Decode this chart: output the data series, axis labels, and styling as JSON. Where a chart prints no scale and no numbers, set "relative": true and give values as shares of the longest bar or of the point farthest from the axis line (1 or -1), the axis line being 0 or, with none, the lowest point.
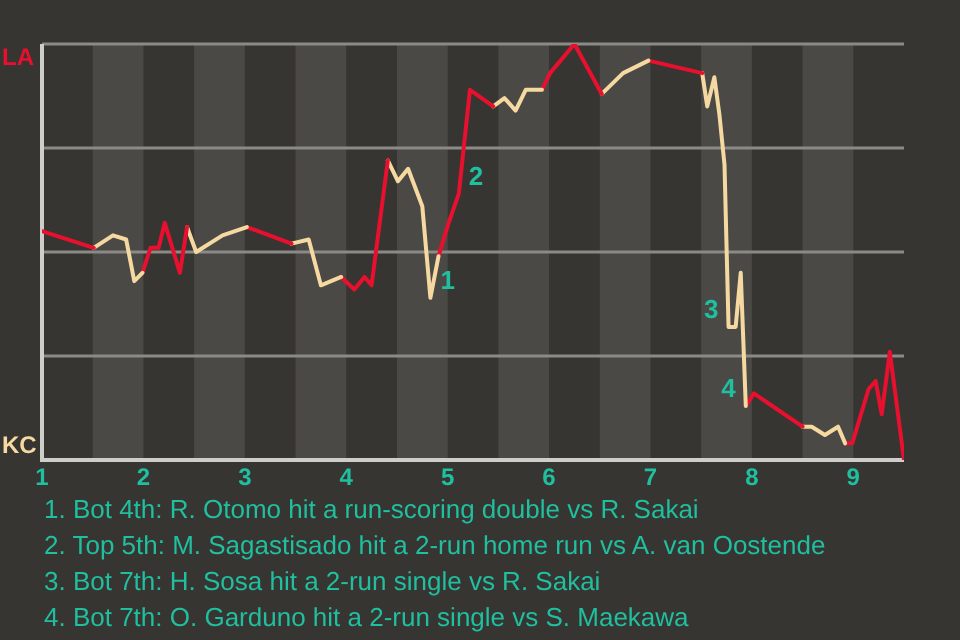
{
  "chart_data": {
    "type": "line",
    "relative": true,
    "xlim": [
      1,
      9.5
    ],
    "xticks": [
      1,
      2,
      3,
      4,
      5,
      6,
      7,
      8,
      9
    ],
    "grid": "y",
    "legend": false,
    "marker": "none",
    "line_style": "solid",
    "series": [
      {
        "color": "#e8102e",
        "x": [
          1,
          1.51
        ],
        "values": [
          0.55,
          0.51
        ]
      },
      {
        "color": "#f5d9a0",
        "x": [
          1.51,
          1.7,
          1.83,
          1.91,
          1.99
        ],
        "values": [
          0.51,
          0.54,
          0.53,
          0.43,
          0.45
        ]
      },
      {
        "color": "#e8102e",
        "x": [
          1.99,
          2.07,
          2.15,
          2.21,
          2.36,
          2.43
        ],
        "values": [
          0.45,
          0.51,
          0.51,
          0.57,
          0.45,
          0.56
        ]
      },
      {
        "color": "#f5d9a0",
        "x": [
          2.43,
          2.52,
          2.78,
          3.02
        ],
        "values": [
          0.56,
          0.5,
          0.54,
          0.56
        ]
      },
      {
        "color": "#e8102e",
        "x": [
          3.02,
          3.46
        ],
        "values": [
          0.56,
          0.52
        ]
      },
      {
        "color": "#f5d9a0",
        "x": [
          3.46,
          3.63,
          3.75,
          3.95
        ],
        "values": [
          0.52,
          0.53,
          0.42,
          0.44
        ]
      },
      {
        "color": "#e8102e",
        "x": [
          3.95,
          4.08,
          4.18,
          4.25,
          4.41
        ],
        "values": [
          0.44,
          0.41,
          0.44,
          0.42,
          0.72
        ]
      },
      {
        "color": "#f5d9a0",
        "x": [
          4.41,
          4.51,
          4.61,
          4.75,
          4.83,
          4.91
        ],
        "values": [
          0.72,
          0.67,
          0.7,
          0.61,
          0.39,
          0.49
        ]
      },
      {
        "color": "#e8102e",
        "x": [
          4.91,
          5.01,
          5.11,
          5.22,
          5.45
        ],
        "values": [
          0.49,
          0.57,
          0.64,
          0.89,
          0.85
        ]
      },
      {
        "color": "#f5d9a0",
        "x": [
          5.45,
          5.56,
          5.67,
          5.77,
          5.93
        ],
        "values": [
          0.85,
          0.87,
          0.84,
          0.89,
          0.89
        ]
      },
      {
        "color": "#e8102e",
        "x": [
          5.93,
          6.01,
          6.25,
          6.52
        ],
        "values": [
          0.89,
          0.93,
          1,
          0.88
        ]
      },
      {
        "color": "#f5d9a0",
        "x": [
          6.52,
          6.73,
          6.98
        ],
        "values": [
          0.88,
          0.93,
          0.96
        ]
      },
      {
        "color": "#e8102e",
        "x": [
          6.98,
          7.51
        ],
        "values": [
          0.96,
          0.93
        ]
      },
      {
        "color": "#f5d9a0",
        "x": [
          7.51,
          7.56,
          7.63,
          7.68,
          7.73,
          7.77,
          7.84,
          7.89,
          7.94
        ],
        "values": [
          0.93,
          0.85,
          0.92,
          0.83,
          0.71,
          0.32,
          0.32,
          0.45,
          0.13
        ]
      },
      {
        "color": "#e8102e",
        "x": [
          7.94,
          8.02,
          8.5
        ],
        "values": [
          0.13,
          0.16,
          0.08
        ]
      },
      {
        "color": "#f5d9a0",
        "x": [
          8.5,
          8.59,
          8.72,
          8.85,
          8.92
        ],
        "values": [
          0.08,
          0.08,
          0.06,
          0.08,
          0.04
        ]
      },
      {
        "color": "#e8102e",
        "x": [
          8.92,
          8.99,
          9.15,
          9.22,
          9.28,
          9.36,
          9.5
        ],
        "values": [
          0.04,
          0.04,
          0.17,
          0.19,
          0.11,
          0.26,
          0
        ]
      }
    ],
    "bands": [
      {
        "axis": "x",
        "from": 1.5,
        "to": 2,
        "color": "#4b4946"
      },
      {
        "axis": "x",
        "from": 2.5,
        "to": 3,
        "color": "#4b4946"
      },
      {
        "axis": "x",
        "from": 3.5,
        "to": 4,
        "color": "#4b4946"
      },
      {
        "axis": "x",
        "from": 4.5,
        "to": 5,
        "color": "#4b4946"
      },
      {
        "axis": "x",
        "from": 5.5,
        "to": 6,
        "color": "#4b4946"
      },
      {
        "axis": "x",
        "from": 6.5,
        "to": 7,
        "color": "#4b4946"
      },
      {
        "axis": "x",
        "from": 7.5,
        "to": 8,
        "color": "#4b4946"
      },
      {
        "axis": "x",
        "from": 8.5,
        "to": 9,
        "color": "#4b4946"
      }
    ],
    "annotations": [
      "LA",
      "KC",
      {
        "text": "1",
        "x": 4.83,
        "y": 0.39
      },
      {
        "text": "2",
        "x": 5.11,
        "y": 0.64
      },
      {
        "text": "3",
        "x": 7.77,
        "y": 0.32
      },
      {
        "text": "4",
        "x": 7.94,
        "y": 0.13
      },
      "1. Bot 4th: R. Otomo hit a run-scoring double vs R. Sakai",
      "2. Top 5th: M. Sagastisado hit a 2-run home run vs A. van Oostende",
      "3. Bot 7th: H. Sosa hit a 2-run single vs R. Sakai",
      "4. Bot 7th: O. Garduno hit a 2-run single vs S. Maekawa"
    ]
  }
}
